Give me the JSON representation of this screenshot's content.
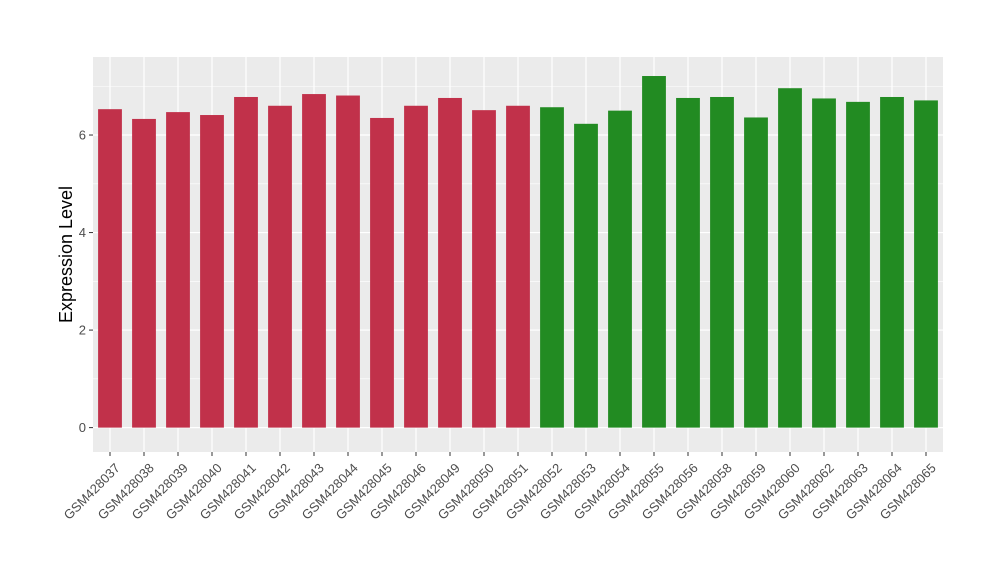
{
  "chart_data": {
    "type": "bar",
    "title": "",
    "xlabel": "",
    "ylabel": "Expression Level",
    "ylim": [
      -0.5,
      7.6
    ],
    "yticks": [
      0,
      2,
      4,
      6
    ],
    "grid": true,
    "background": "#EBEBEB",
    "gridline_color": "#FFFFFF",
    "categories": [
      "GSM428037",
      "GSM428038",
      "GSM428039",
      "GSM428040",
      "GSM428041",
      "GSM428042",
      "GSM428043",
      "GSM428044",
      "GSM428045",
      "GSM428046",
      "GSM428049",
      "GSM428050",
      "GSM428051",
      "GSM428052",
      "GSM428053",
      "GSM428054",
      "GSM428055",
      "GSM428056",
      "GSM428058",
      "GSM428059",
      "GSM428060",
      "GSM428062",
      "GSM428063",
      "GSM428064",
      "GSM428065"
    ],
    "values": [
      6.53,
      6.33,
      6.47,
      6.41,
      6.78,
      6.6,
      6.84,
      6.81,
      6.35,
      6.6,
      6.76,
      6.51,
      6.6,
      6.57,
      6.23,
      6.5,
      7.21,
      6.76,
      6.78,
      6.36,
      6.96,
      6.75,
      6.68,
      6.78,
      6.71
    ],
    "bar_colors": [
      "#C1314A",
      "#C1314A",
      "#C1314A",
      "#C1314A",
      "#C1314A",
      "#C1314A",
      "#C1314A",
      "#C1314A",
      "#C1314A",
      "#C1314A",
      "#C1314A",
      "#C1314A",
      "#C1314A",
      "#228B22",
      "#228B22",
      "#228B22",
      "#228B22",
      "#228B22",
      "#228B22",
      "#228B22",
      "#228B22",
      "#228B22",
      "#228B22",
      "#228B22",
      "#228B22"
    ]
  }
}
